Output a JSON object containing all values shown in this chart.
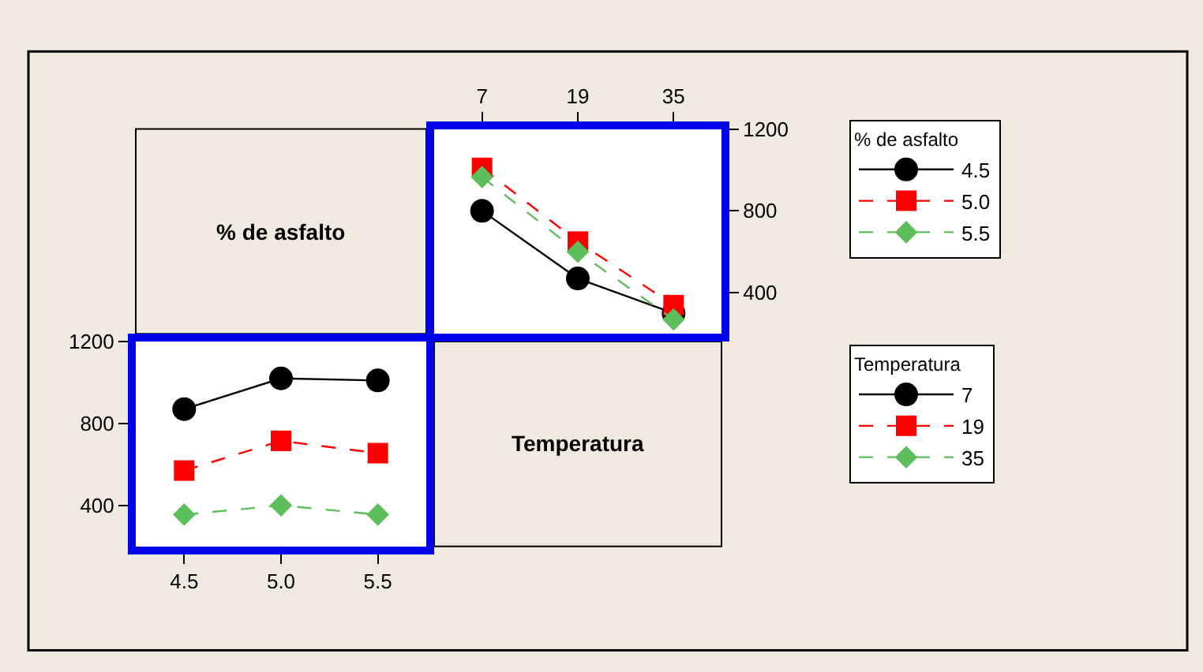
{
  "chart_data": [
    {
      "type": "line",
      "xlabel": "Temperatura",
      "legend_title": "% de asfalto",
      "legend": "right",
      "categories": [
        "7",
        "19",
        "35"
      ],
      "ylim": [
        200,
        1200
      ],
      "yticks": [
        400,
        800,
        1200
      ],
      "grid": false,
      "series": [
        {
          "name": "4.5",
          "color": "#000000",
          "marker": "circle",
          "line_style": "solid",
          "values": [
            800,
            470,
            300
          ]
        },
        {
          "name": "5.0",
          "color": "#ff0000",
          "marker": "square",
          "line_style": "dashed",
          "values": [
            1010,
            650,
            340
          ]
        },
        {
          "name": "5.5",
          "color": "#5cbf5c",
          "marker": "diamond",
          "line_style": "dashed",
          "values": [
            965,
            600,
            270
          ]
        }
      ]
    },
    {
      "type": "line",
      "xlabel": "% de asfalto",
      "legend_title": "Temperatura",
      "legend": "right",
      "categories": [
        "4.5",
        "5.0",
        "5.5"
      ],
      "ylim": [
        200,
        1200
      ],
      "yticks": [
        400,
        800,
        1200
      ],
      "grid": false,
      "series": [
        {
          "name": "7",
          "color": "#000000",
          "marker": "circle",
          "line_style": "solid",
          "values": [
            870,
            1020,
            1010
          ]
        },
        {
          "name": "19",
          "color": "#ff0000",
          "marker": "square",
          "line_style": "dashed",
          "values": [
            570,
            715,
            655
          ]
        },
        {
          "name": "35",
          "color": "#5cbf5c",
          "marker": "diamond",
          "line_style": "dashed",
          "values": [
            355,
            400,
            355
          ]
        }
      ]
    }
  ]
}
